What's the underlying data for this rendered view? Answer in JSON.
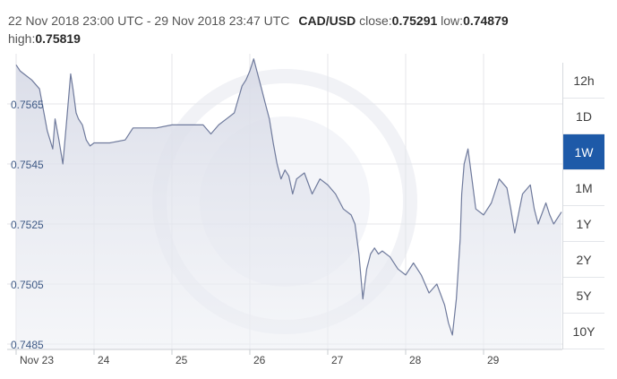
{
  "header": {
    "range_text": "22 Nov 2018 23:00 UTC - 29 Nov 2018 23:47 UTC",
    "pair": "CAD/USD",
    "close_label": "close:",
    "close_value": "0.75291",
    "low_label": "low:",
    "low_value": "0.74879",
    "high_label": "high:",
    "high_value": "0.75819"
  },
  "range_buttons": [
    {
      "label": "12h",
      "active": false
    },
    {
      "label": "1D",
      "active": false
    },
    {
      "label": "1W",
      "active": true
    },
    {
      "label": "1M",
      "active": false
    },
    {
      "label": "1Y",
      "active": false
    },
    {
      "label": "2Y",
      "active": false
    },
    {
      "label": "5Y",
      "active": false
    },
    {
      "label": "10Y",
      "active": false
    }
  ],
  "colors": {
    "line": "#6f7a9c",
    "area": "#d8dbe7",
    "active_button": "#1e5aa8"
  },
  "chart_data": {
    "type": "area",
    "title": "",
    "xlabel": "",
    "ylabel": "",
    "ylim": [
      0.748,
      0.758
    ],
    "xlim": [
      0,
      7.0
    ],
    "yticks": [
      "0.7565",
      "0.7545",
      "0.7525",
      "0.7505",
      "0.7485"
    ],
    "xticks": [
      "Nov 23",
      "24",
      "25",
      "26",
      "27",
      "28",
      "29"
    ],
    "grid": true,
    "series": [
      {
        "x": [
          0,
          0.05,
          0.1,
          0.2,
          0.3,
          0.4,
          0.47,
          0.5,
          0.55,
          0.6,
          0.65,
          0.7,
          0.73,
          0.77,
          0.8,
          0.85,
          0.9,
          0.95,
          1.0,
          1.2,
          1.4,
          1.5,
          1.6,
          1.8,
          2.0,
          2.2,
          2.4,
          2.5,
          2.6,
          2.7,
          2.8,
          2.9,
          2.95,
          3.0,
          3.05,
          3.1,
          3.15,
          3.2,
          3.25,
          3.3,
          3.35,
          3.4,
          3.45,
          3.5,
          3.55,
          3.6,
          3.7,
          3.8,
          3.9,
          4.0,
          4.1,
          4.2,
          4.3,
          4.35,
          4.4,
          4.45,
          4.5,
          4.55,
          4.6,
          4.65,
          4.7,
          4.8,
          4.9,
          5.0,
          5.1,
          5.2,
          5.3,
          5.4,
          5.5,
          5.55,
          5.6,
          5.65,
          5.7,
          5.72,
          5.75,
          5.8,
          5.85,
          5.9,
          6.0,
          6.1,
          6.2,
          6.3,
          6.35,
          6.4,
          6.5,
          6.6,
          6.65,
          6.7,
          6.8,
          6.85,
          6.9,
          7.0
        ],
        "y": [
          0.7578,
          0.7576,
          0.7575,
          0.7573,
          0.757,
          0.7556,
          0.755,
          0.756,
          0.7553,
          0.7545,
          0.756,
          0.7575,
          0.757,
          0.7562,
          0.756,
          0.7558,
          0.7553,
          0.7551,
          0.7552,
          0.7552,
          0.7553,
          0.7557,
          0.7557,
          0.7557,
          0.7558,
          0.7558,
          0.7558,
          0.7555,
          0.7558,
          0.756,
          0.7562,
          0.7571,
          0.7573,
          0.7576,
          0.758,
          0.7575,
          0.757,
          0.7565,
          0.756,
          0.7552,
          0.7545,
          0.754,
          0.7543,
          0.7541,
          0.7535,
          0.754,
          0.7542,
          0.7535,
          0.754,
          0.7538,
          0.7535,
          0.753,
          0.7528,
          0.7525,
          0.7515,
          0.75,
          0.751,
          0.7515,
          0.7517,
          0.7515,
          0.7516,
          0.7514,
          0.751,
          0.7508,
          0.7512,
          0.7508,
          0.7502,
          0.7505,
          0.7498,
          0.7492,
          0.7488,
          0.75,
          0.752,
          0.7535,
          0.7545,
          0.755,
          0.754,
          0.753,
          0.7528,
          0.7532,
          0.754,
          0.7537,
          0.753,
          0.7522,
          0.7535,
          0.7538,
          0.753,
          0.7525,
          0.7532,
          0.7528,
          0.7525,
          0.7529
        ]
      }
    ]
  }
}
